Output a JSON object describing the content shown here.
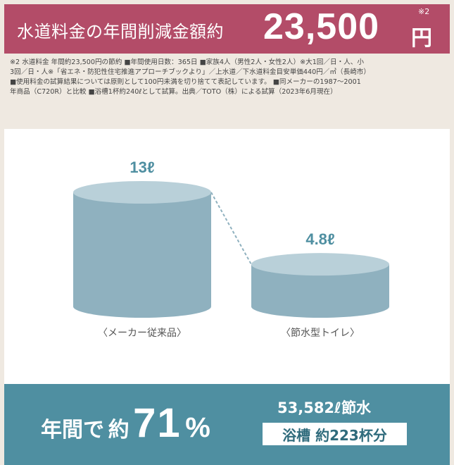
{
  "header": {
    "label": "水道料金の年間削減金額約",
    "amount": "23,500",
    "unit": "円",
    "note_mark": "※2"
  },
  "footnote": {
    "lines": [
      "※2 水道料金 年間約23,500円の節約 ■年間使用日数：365日 ■家族4人（男性2人・女性2人）※大1回／日・人、小",
      "3回／日・人※「省エネ・防犯性住宅推進アプローチブックより」／上水道／下水道料金目安単価440円／㎥（長崎市）",
      "■使用料金の試算結果については原則として100円未満を切り捨てて表記しています。 ■同メーカーの1987〜2001",
      "年商品（C720R）と比較 ■浴槽1杯約240ℓとして試算。出典／TOTO（株）による試算（2023年6月現在）"
    ]
  },
  "chart_data": {
    "type": "bar",
    "categories": [
      "〈メーカー従来品〉",
      "〈節水型トイレ〉"
    ],
    "values": [
      13,
      4.8
    ],
    "value_labels": [
      "13ℓ",
      "4.8ℓ"
    ],
    "title": "",
    "xlabel": "",
    "ylabel": "",
    "ylim": [
      0,
      13
    ],
    "grid": false
  },
  "summary": {
    "prefix": "年間で",
    "about": "約",
    "percent": "71",
    "percent_sign": "%",
    "saving": "53,582ℓ節水",
    "bathtub": "浴槽 約223杯分"
  },
  "colors": {
    "header_bg": "#b34c68",
    "cylinder": "#8fb1bf",
    "cylinder_top": "#b9d0d9",
    "bottom_bg": "#4f8fa1",
    "value_label": "#4f8fa1"
  }
}
